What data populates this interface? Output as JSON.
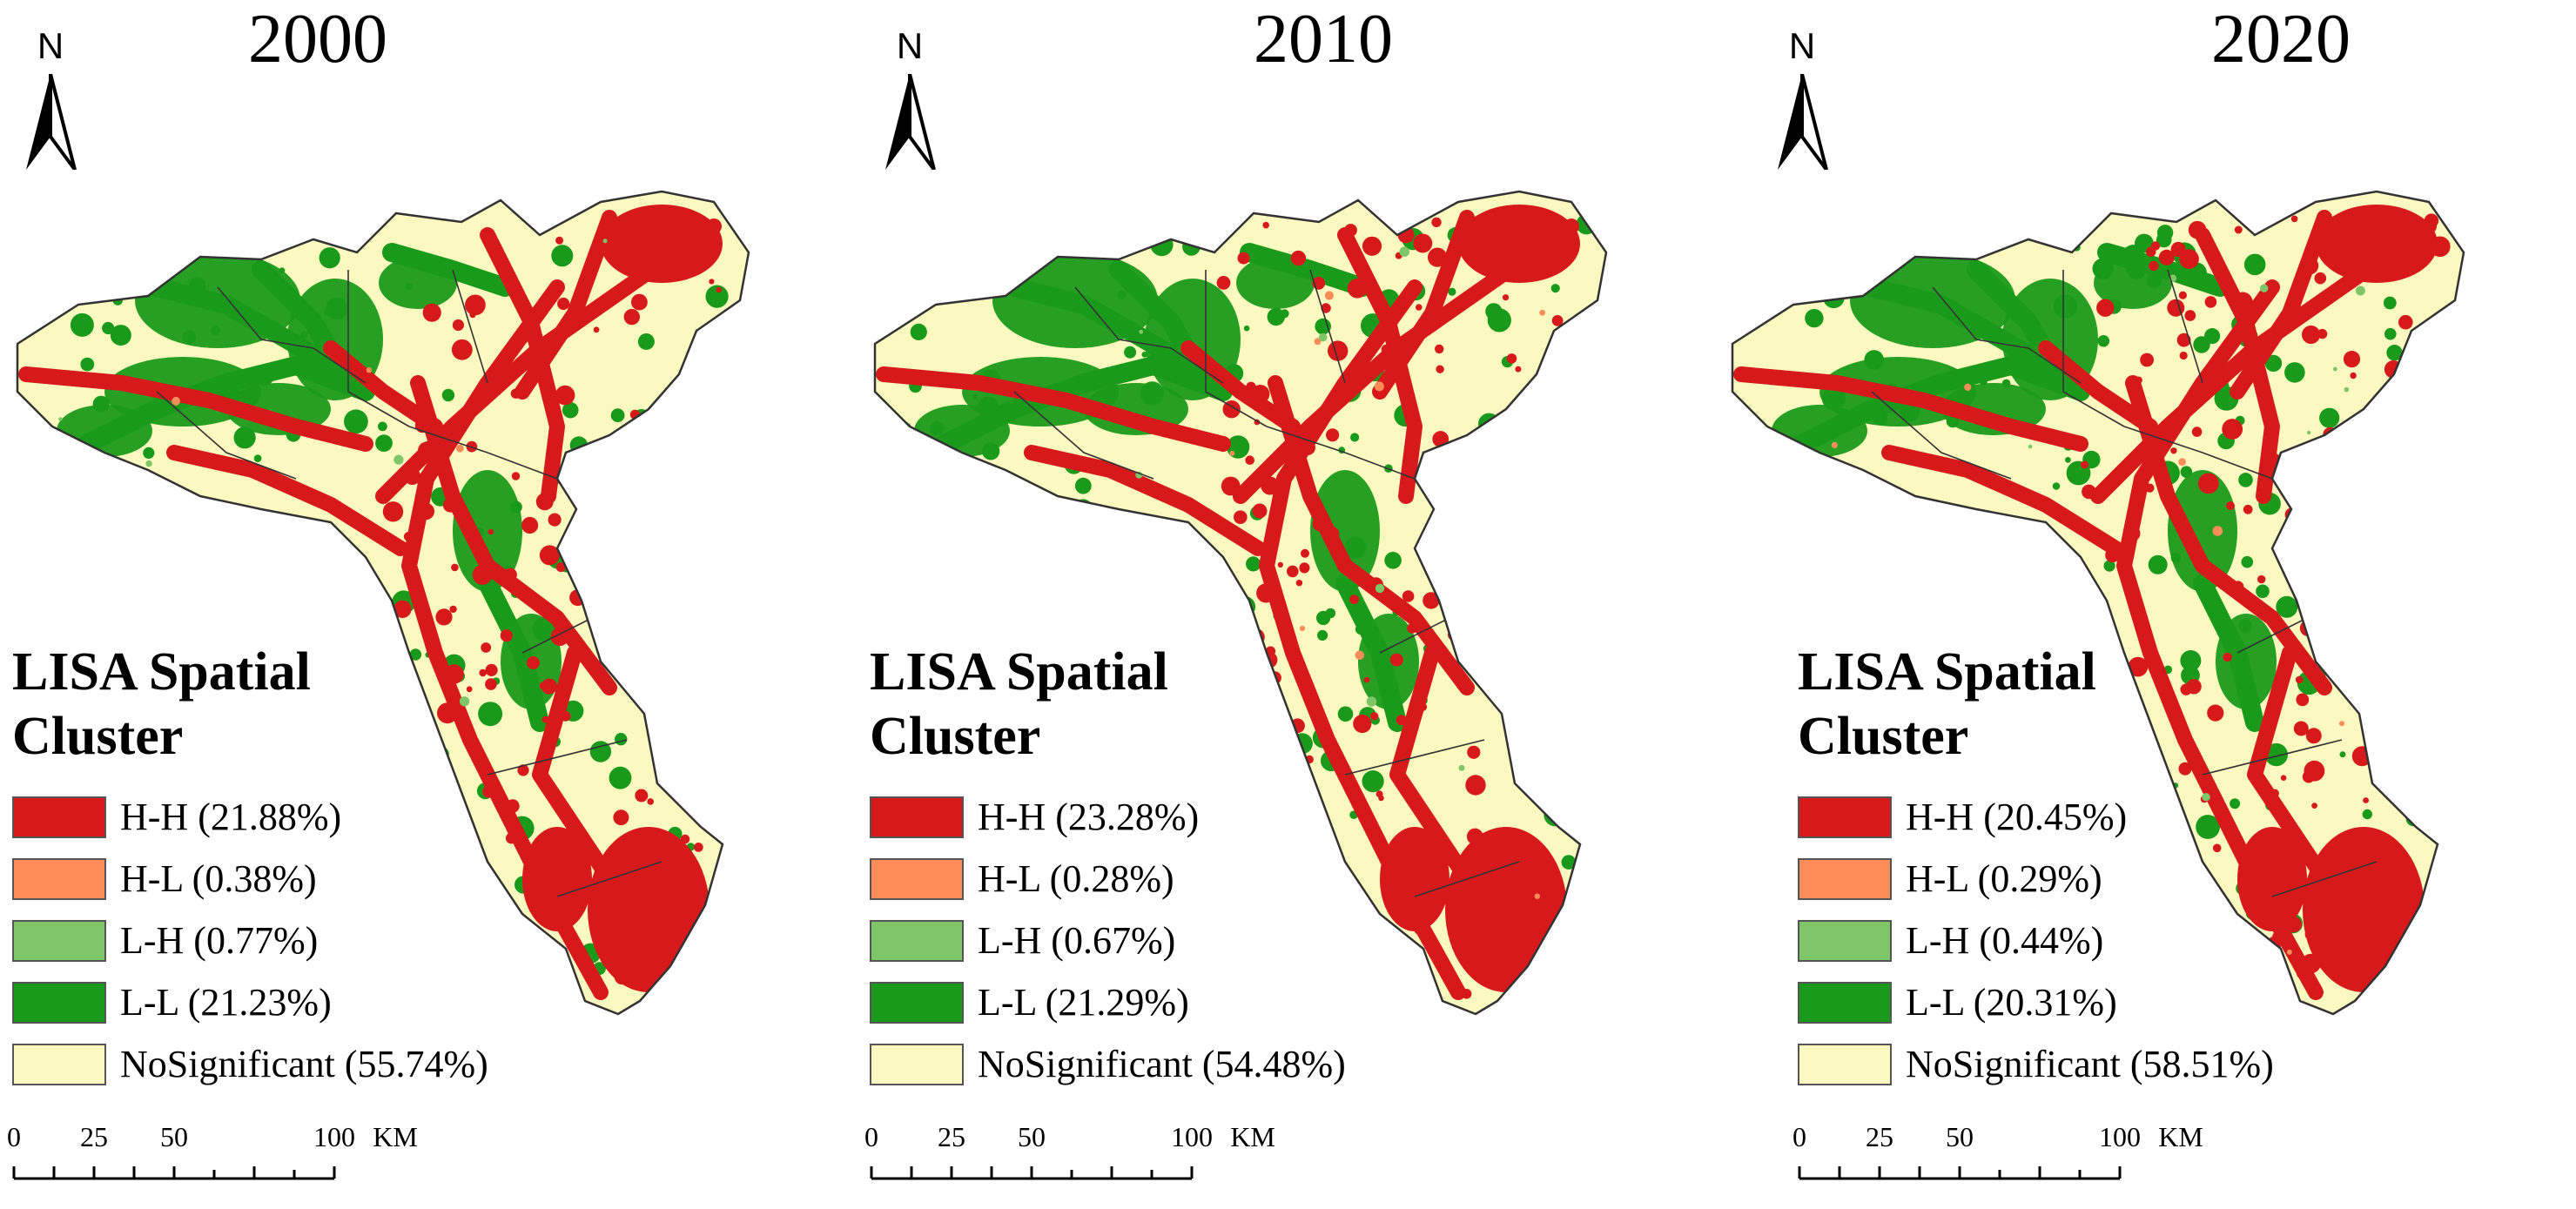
{
  "colors": {
    "hh": "#d7191c",
    "hl": "#fc8d59",
    "lh": "#7fc668",
    "ll": "#1a9a1a",
    "ns": "#fbf8c0",
    "boundary": "#333333"
  },
  "legend_title_line1": "LISA Spatial",
  "legend_title_line2": "Cluster",
  "north_label": "N",
  "scale": {
    "ticks": [
      "0",
      "25",
      "50",
      "100"
    ],
    "unit": "KM"
  },
  "panels": [
    {
      "year": "2000",
      "legend": [
        {
          "key": "hh",
          "label": "H-H (21.88%)"
        },
        {
          "key": "hl",
          "label": "H-L (0.38%)"
        },
        {
          "key": "lh",
          "label": "L-H (0.77%)"
        },
        {
          "key": "ll",
          "label": "L-L (21.23%)"
        },
        {
          "key": "ns",
          "label": "NoSignificant (55.74%)"
        }
      ]
    },
    {
      "year": "2010",
      "legend": [
        {
          "key": "hh",
          "label": "H-H (23.28%)"
        },
        {
          "key": "hl",
          "label": "H-L (0.28%)"
        },
        {
          "key": "lh",
          "label": "L-H (0.67%)"
        },
        {
          "key": "ll",
          "label": "L-L (21.29%)"
        },
        {
          "key": "ns",
          "label": "NoSignificant (54.48%)"
        }
      ]
    },
    {
      "year": "2020",
      "legend": [
        {
          "key": "hh",
          "label": "H-H (20.45%)"
        },
        {
          "key": "hl",
          "label": "H-L (0.29%)"
        },
        {
          "key": "lh",
          "label": "L-H (0.44%)"
        },
        {
          "key": "ll",
          "label": "L-L (20.31%)"
        },
        {
          "key": "ns",
          "label": "NoSignificant (58.51%)"
        }
      ]
    }
  ]
}
